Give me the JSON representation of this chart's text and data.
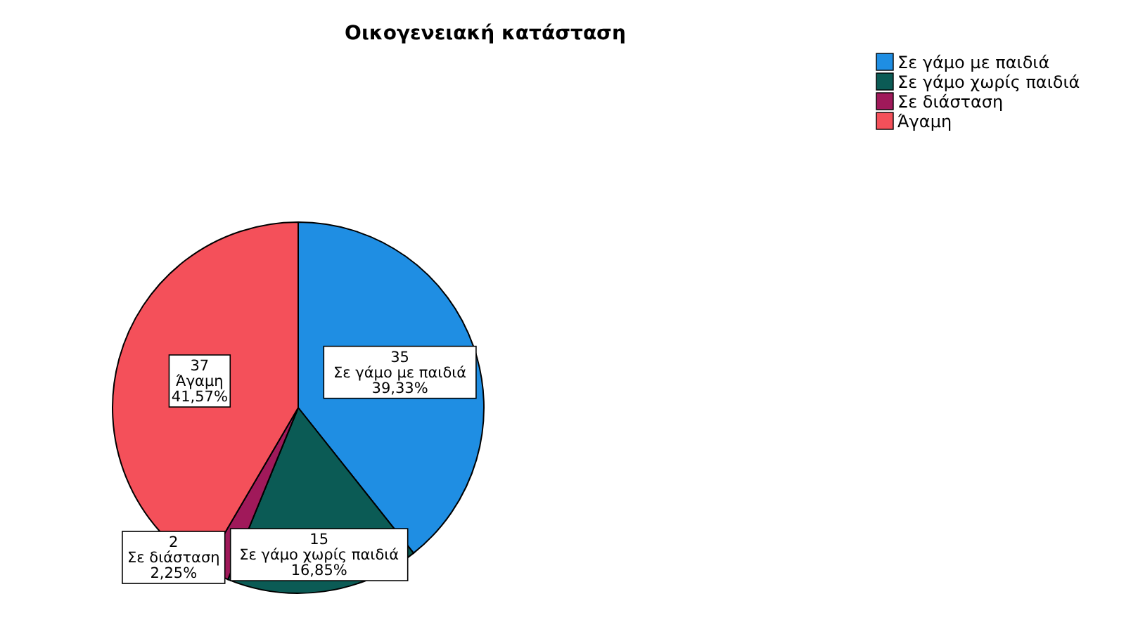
{
  "chart_data": {
    "type": "pie",
    "title": "Οικογενειακή κατάσταση",
    "categories": [
      "Σε γάμο με παιδιά",
      "Σε γάμο χωρίς παιδιά",
      "Σε διάσταση",
      "Άγαμη"
    ],
    "values": [
      39.33,
      16.85,
      2.25,
      41.57
    ],
    "colors": [
      "#1f8ee3",
      "#0b5b55",
      "#a0195a",
      "#f4505a"
    ],
    "value_labels": [
      "39,33%",
      "16,85%",
      "2,25%",
      "41,57%"
    ],
    "annotations": [
      "35",
      "15",
      "2",
      "37"
    ],
    "legend": "top right"
  }
}
